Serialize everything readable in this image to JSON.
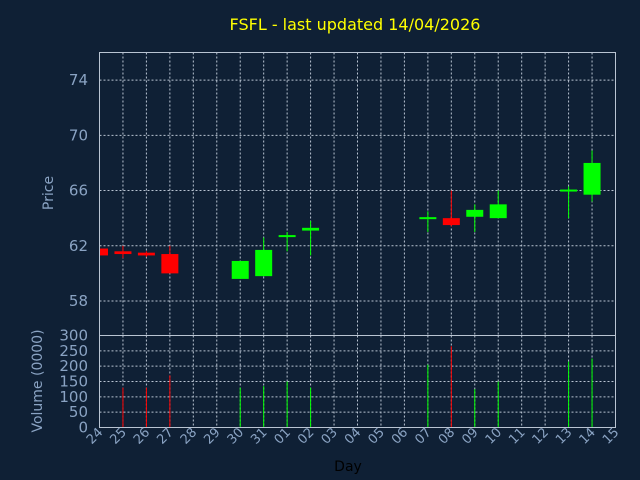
{
  "chart_data": {
    "type": "candlestick",
    "title": "FSFL - last updated 14/04/2026",
    "xlabel": "Day",
    "price_panel": {
      "ylabel": "Price",
      "ylim": [
        55.5,
        76.0
      ],
      "yticks": [
        58,
        62,
        66,
        70,
        74
      ]
    },
    "volume_panel": {
      "ylabel": "Volume (0000)",
      "ylim": [
        0,
        300
      ],
      "yticks": [
        0,
        50,
        100,
        150,
        200,
        250,
        300
      ]
    },
    "x_tick_labels": [
      "24",
      "25",
      "26",
      "27",
      "28",
      "29",
      "30",
      "31",
      "01",
      "02",
      "03",
      "04",
      "05",
      "06",
      "07",
      "08",
      "09",
      "10",
      "11",
      "12",
      "13",
      "14",
      "15"
    ],
    "grid": true,
    "up_color": "#00ff00",
    "down_color": "#ff0000",
    "candles": [
      {
        "day": "24",
        "open": 61.8,
        "high": 61.8,
        "low": 61.1,
        "close": 61.3,
        "volume": 0
      },
      {
        "day": "25",
        "open": 61.6,
        "high": 62.0,
        "low": 61.1,
        "close": 61.4,
        "volume": 130
      },
      {
        "day": "26",
        "open": 61.5,
        "high": 61.6,
        "low": 61.2,
        "close": 61.3,
        "volume": 130
      },
      {
        "day": "27",
        "open": 61.4,
        "high": 62.0,
        "low": 60.0,
        "close": 60.0,
        "volume": 170
      },
      {
        "day": "30",
        "open": 59.6,
        "high": 60.9,
        "low": 59.6,
        "close": 60.9,
        "volume": 130
      },
      {
        "day": "31",
        "open": 59.8,
        "high": 62.6,
        "low": 59.8,
        "close": 61.7,
        "volume": 135
      },
      {
        "day": "01",
        "open": 62.6,
        "high": 63.0,
        "low": 61.6,
        "close": 62.7,
        "volume": 150
      },
      {
        "day": "02",
        "open": 63.1,
        "high": 63.8,
        "low": 61.3,
        "close": 63.3,
        "volume": 130
      },
      {
        "day": "07",
        "open": 64.0,
        "high": 64.5,
        "low": 63.0,
        "close": 64.0,
        "volume": 205
      },
      {
        "day": "08",
        "open": 64.0,
        "high": 66.0,
        "low": 63.4,
        "close": 63.5,
        "volume": 265
      },
      {
        "day": "09",
        "open": 64.1,
        "high": 65.0,
        "low": 63.0,
        "close": 64.6,
        "volume": 125
      },
      {
        "day": "10",
        "open": 64.0,
        "high": 66.0,
        "low": 64.0,
        "close": 65.0,
        "volume": 150
      },
      {
        "day": "13",
        "open": 66.0,
        "high": 66.3,
        "low": 64.0,
        "close": 66.0,
        "volume": 215
      },
      {
        "day": "14",
        "open": 65.7,
        "high": 68.9,
        "low": 65.2,
        "close": 68.0,
        "volume": 225
      }
    ]
  }
}
